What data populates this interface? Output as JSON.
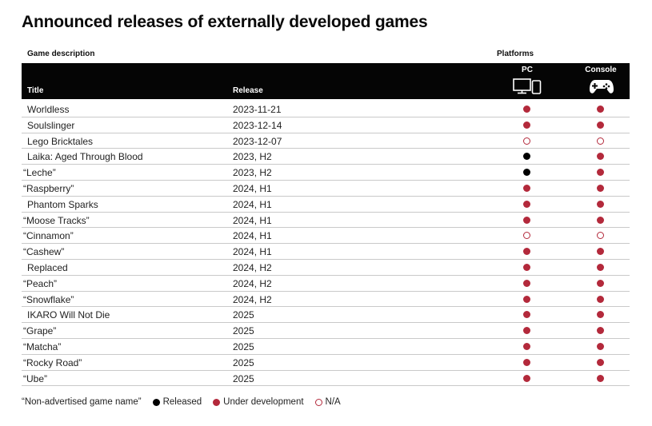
{
  "title": "Announced releases of externally developed games",
  "group_headers": {
    "game_description": "Game description",
    "platforms": "Platforms"
  },
  "columns": {
    "title": "Title",
    "release": "Release",
    "pc": "PC",
    "console": "Console"
  },
  "icons": {
    "pc": "monitor-and-tablet-icon",
    "console": "gamepad-icon"
  },
  "colors": {
    "under_development": "#b3293b",
    "released": "#000000",
    "header_bg": "#050505"
  },
  "rows": [
    {
      "title": "Worldless",
      "release": "2023-11-21",
      "pc": "dev",
      "console": "dev"
    },
    {
      "title": "Soulslinger",
      "release": "2023-12-14",
      "pc": "dev",
      "console": "dev"
    },
    {
      "title": "Lego Bricktales",
      "release": "2023-12-07",
      "pc": "na",
      "console": "na"
    },
    {
      "title": "Laika: Aged Through Blood",
      "release": "2023, H2",
      "pc": "released",
      "console": "dev"
    },
    {
      "title": "“Leche”",
      "release": "2023, H2",
      "pc": "released",
      "console": "dev"
    },
    {
      "title": "“Raspberry”",
      "release": "2024, H1",
      "pc": "dev",
      "console": "dev"
    },
    {
      "title": "Phantom Sparks",
      "release": "2024, H1",
      "pc": "dev",
      "console": "dev"
    },
    {
      "title": "“Moose Tracks”",
      "release": "2024, H1",
      "pc": "dev",
      "console": "dev"
    },
    {
      "title": "“Cinnamon”",
      "release": "2024, H1",
      "pc": "na",
      "console": "na"
    },
    {
      "title": "“Cashew”",
      "release": "2024, H1",
      "pc": "dev",
      "console": "dev"
    },
    {
      "title": "Replaced",
      "release": "2024, H2",
      "pc": "dev",
      "console": "dev"
    },
    {
      "title": "“Peach”",
      "release": "2024, H2",
      "pc": "dev",
      "console": "dev"
    },
    {
      "title": "“Snowflake”",
      "release": "2024, H2",
      "pc": "dev",
      "console": "dev"
    },
    {
      "title": "IKARO Will Not Die",
      "release": "2025",
      "pc": "dev",
      "console": "dev"
    },
    {
      "title": "“Grape”",
      "release": "2025",
      "pc": "dev",
      "console": "dev"
    },
    {
      "title": "“Matcha”",
      "release": "2025",
      "pc": "dev",
      "console": "dev"
    },
    {
      "title": "“Rocky Road”",
      "release": "2025",
      "pc": "dev",
      "console": "dev"
    },
    {
      "title": "“Ube”",
      "release": "2025",
      "pc": "dev",
      "console": "dev"
    }
  ],
  "legend": {
    "non_advertised": "“Non-advertised game name”",
    "released": "Released",
    "under_development": "Under development",
    "na": "N/A"
  }
}
